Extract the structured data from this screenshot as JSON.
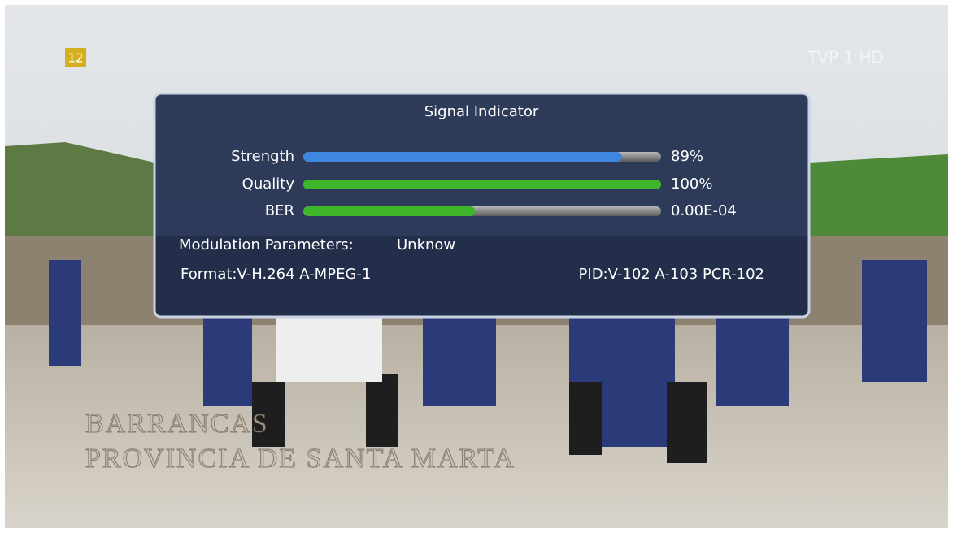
{
  "channel_badge": "12",
  "channel_logo": "TVP 1 HD",
  "caption": {
    "line1": "BARRANCAS",
    "line2": "PROVINCIA DE SANTA MARTA"
  },
  "signal_panel": {
    "title": "Signal Indicator",
    "indicators": [
      {
        "label": "Strength",
        "bar": 89,
        "reading": "89%",
        "color": "#3f86e0"
      },
      {
        "label": "Quality",
        "bar": 100,
        "reading": "100%",
        "color": "#3fb52a"
      },
      {
        "label": "BER",
        "bar": 48,
        "reading": "0.00E-04",
        "color": "#3fb52a"
      }
    ],
    "modulation": {
      "label": "Modulation Parameters:",
      "value": "Unknow"
    },
    "format": "Format:V-H.264 A-MPEG-1",
    "pid": "PID:V-102 A-103 PCR-102"
  }
}
